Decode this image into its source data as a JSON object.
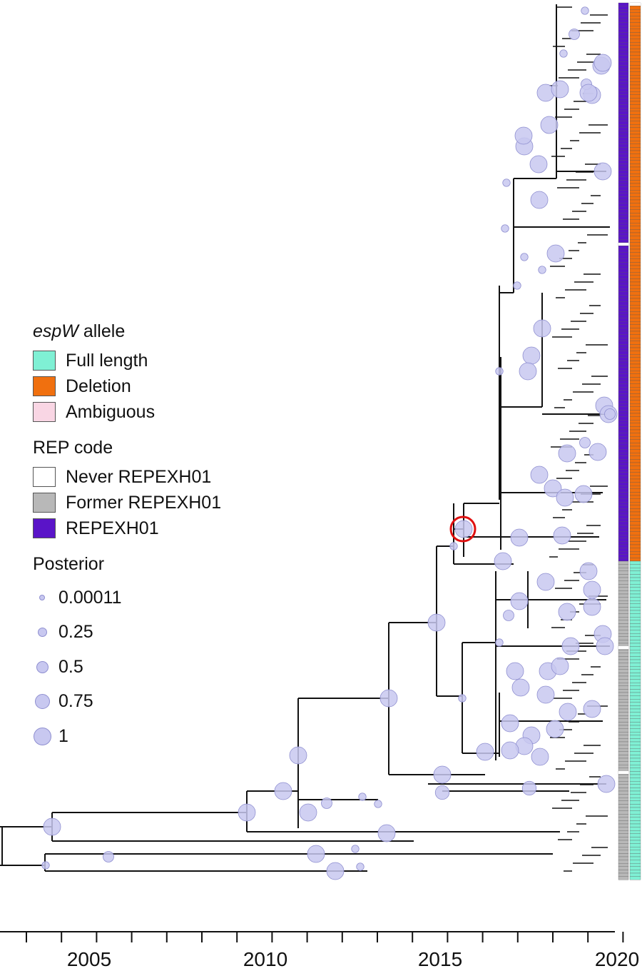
{
  "legend": {
    "allele_title_italic": "espW",
    "allele_title_rest": " allele",
    "allele_items": [
      {
        "label": "Full length",
        "color": "#7ff0d4"
      },
      {
        "label": "Deletion",
        "color": "#f0700f"
      },
      {
        "label": "Ambiguous",
        "color": "#f9d6e4"
      }
    ],
    "rep_title": "REP code",
    "rep_items": [
      {
        "label": "Never REPEXH01",
        "color": "#ffffff"
      },
      {
        "label": "Former REPEXH01",
        "color": "#b8b8b8"
      },
      {
        "label": "REPEXH01",
        "color": "#5a14c8"
      }
    ],
    "posterior_title": "Posterior",
    "posterior_items": [
      {
        "label": "0.00011",
        "value": 0.00011
      },
      {
        "label": "0.25",
        "value": 0.25
      },
      {
        "label": "0.5",
        "value": 0.5
      },
      {
        "label": "0.75",
        "value": 0.75
      },
      {
        "label": "1",
        "value": 1
      }
    ]
  },
  "axis": {
    "labels": [
      "2005",
      "2010",
      "2015",
      "2020"
    ],
    "range": [
      2001.9,
      2020.2
    ]
  },
  "colors": {
    "branch": "#111111",
    "node_fill": "#c8c8f0",
    "node_stroke": "#8f8fd0",
    "highlight_circle": "#e01010",
    "allele_deletion": "#f0700f",
    "allele_full": "#7ff0d4",
    "rep_current": "#5a14c8",
    "rep_former": "#b8b8b8"
  },
  "annotation": {
    "highlighted_node_year": 2015.7
  }
}
